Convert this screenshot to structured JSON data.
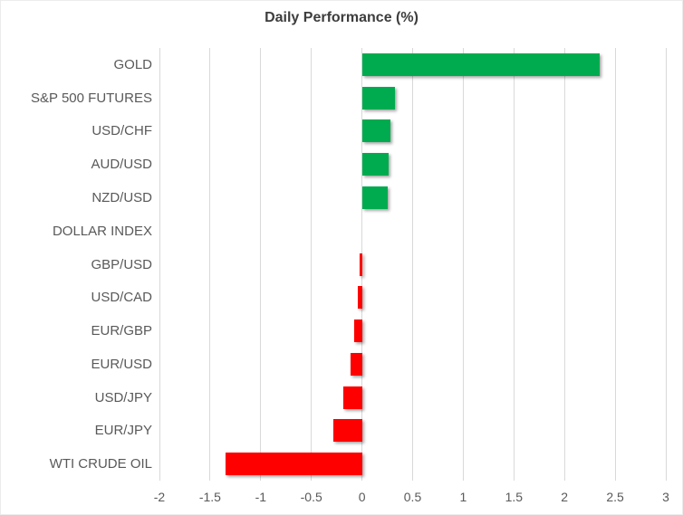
{
  "title": "Daily Performance (%)",
  "colors": {
    "positive_bar": "#00ab50",
    "negative_bar": "#ff0000",
    "gridline": "#d9d9d9",
    "axis_text": "#595959",
    "title_text": "#3d3d3d",
    "background": "#ffffff"
  },
  "chart_data": {
    "type": "bar",
    "orientation": "horizontal",
    "title": "Daily Performance (%)",
    "categories": [
      "GOLD",
      "S&P 500 FUTURES",
      "USD/CHF",
      "AUD/USD",
      "NZD/USD",
      "DOLLAR INDEX",
      "GBP/USD",
      "USD/CAD",
      "EUR/GBP",
      "EUR/USD",
      "USD/JPY",
      "EUR/JPY",
      "WTI CRUDE OIL"
    ],
    "values": [
      2.35,
      0.33,
      0.28,
      0.26,
      0.25,
      0,
      -0.02,
      -0.04,
      -0.08,
      -0.11,
      -0.18,
      -0.28,
      -1.35
    ],
    "xlim": [
      -2,
      3
    ],
    "xticks": [
      -2,
      -1.5,
      -1,
      -0.5,
      0,
      0.5,
      1,
      1.5,
      2,
      2.5,
      3
    ],
    "xtick_labels": [
      "-2",
      "-1.5",
      "-1",
      "-0.5",
      "0",
      "0.5",
      "1",
      "1.5",
      "2",
      "2.5",
      "3"
    ],
    "grid": "vertical-only",
    "legend": "none",
    "bar_color_rule": "green if value > 0, red if value < 0, none if 0"
  }
}
